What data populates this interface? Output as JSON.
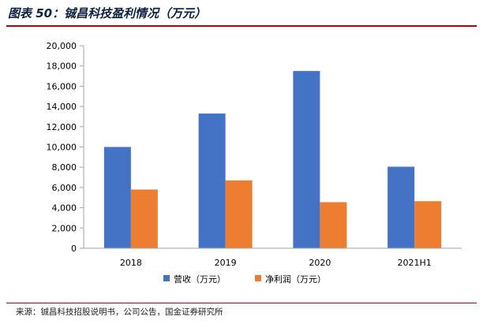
{
  "title": "图表 50：铖昌科技盈利情况（万元）",
  "source": "来源：铖昌科技招股说明书，公司公告，国金证券研究所",
  "chart_data": {
    "type": "bar",
    "categories": [
      "2018",
      "2019",
      "2020",
      "2021H1"
    ],
    "series": [
      {
        "name": "营收（万元）",
        "color": "#4472c4",
        "values": [
          10000,
          13300,
          17500,
          8050
        ]
      },
      {
        "name": "净利润（万元）",
        "color": "#ed7d31",
        "values": [
          5800,
          6700,
          4550,
          4650
        ]
      }
    ],
    "ylim": [
      0,
      20000
    ],
    "yticks": [
      0,
      2000,
      4000,
      6000,
      8000,
      10000,
      12000,
      14000,
      16000,
      18000,
      20000
    ],
    "ytick_labels": [
      "0",
      "2,000",
      "4,000",
      "6,000",
      "8,000",
      "10,000",
      "12,000",
      "14,000",
      "16,000",
      "18,000",
      "20,000"
    ],
    "grid": false,
    "legend_position": "bottom"
  }
}
